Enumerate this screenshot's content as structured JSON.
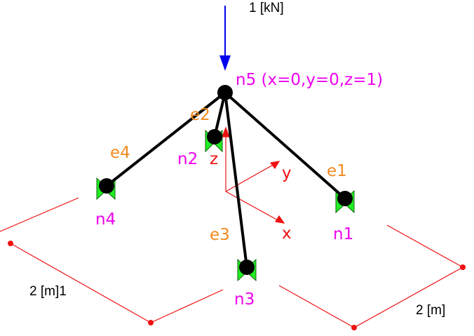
{
  "load": {
    "label": "1 [kN]"
  },
  "nodes": [
    {
      "id": "n5",
      "label": "n5 (x=0,y=0,z=1)"
    },
    {
      "id": "n1",
      "label": "n1"
    },
    {
      "id": "n2",
      "label": "n2"
    },
    {
      "id": "n3",
      "label": "n3"
    },
    {
      "id": "n4",
      "label": "n4"
    }
  ],
  "elements": [
    {
      "id": "e1",
      "label": "e1"
    },
    {
      "id": "e2",
      "label": "e2"
    },
    {
      "id": "e3",
      "label": "e3"
    },
    {
      "id": "e4",
      "label": "e4"
    }
  ],
  "axes": {
    "x": "x",
    "y": "y",
    "z": "z"
  },
  "dimensions": {
    "left": "2 [m]1",
    "right": "2 [m]"
  },
  "colors": {
    "load_arrow": "#0000ee",
    "node_label": "#ee00ee",
    "element_label": "#f28a1f",
    "axis": "#ee1111",
    "grid": "#ee1111",
    "support": "#22ee22",
    "member": "#000000"
  }
}
